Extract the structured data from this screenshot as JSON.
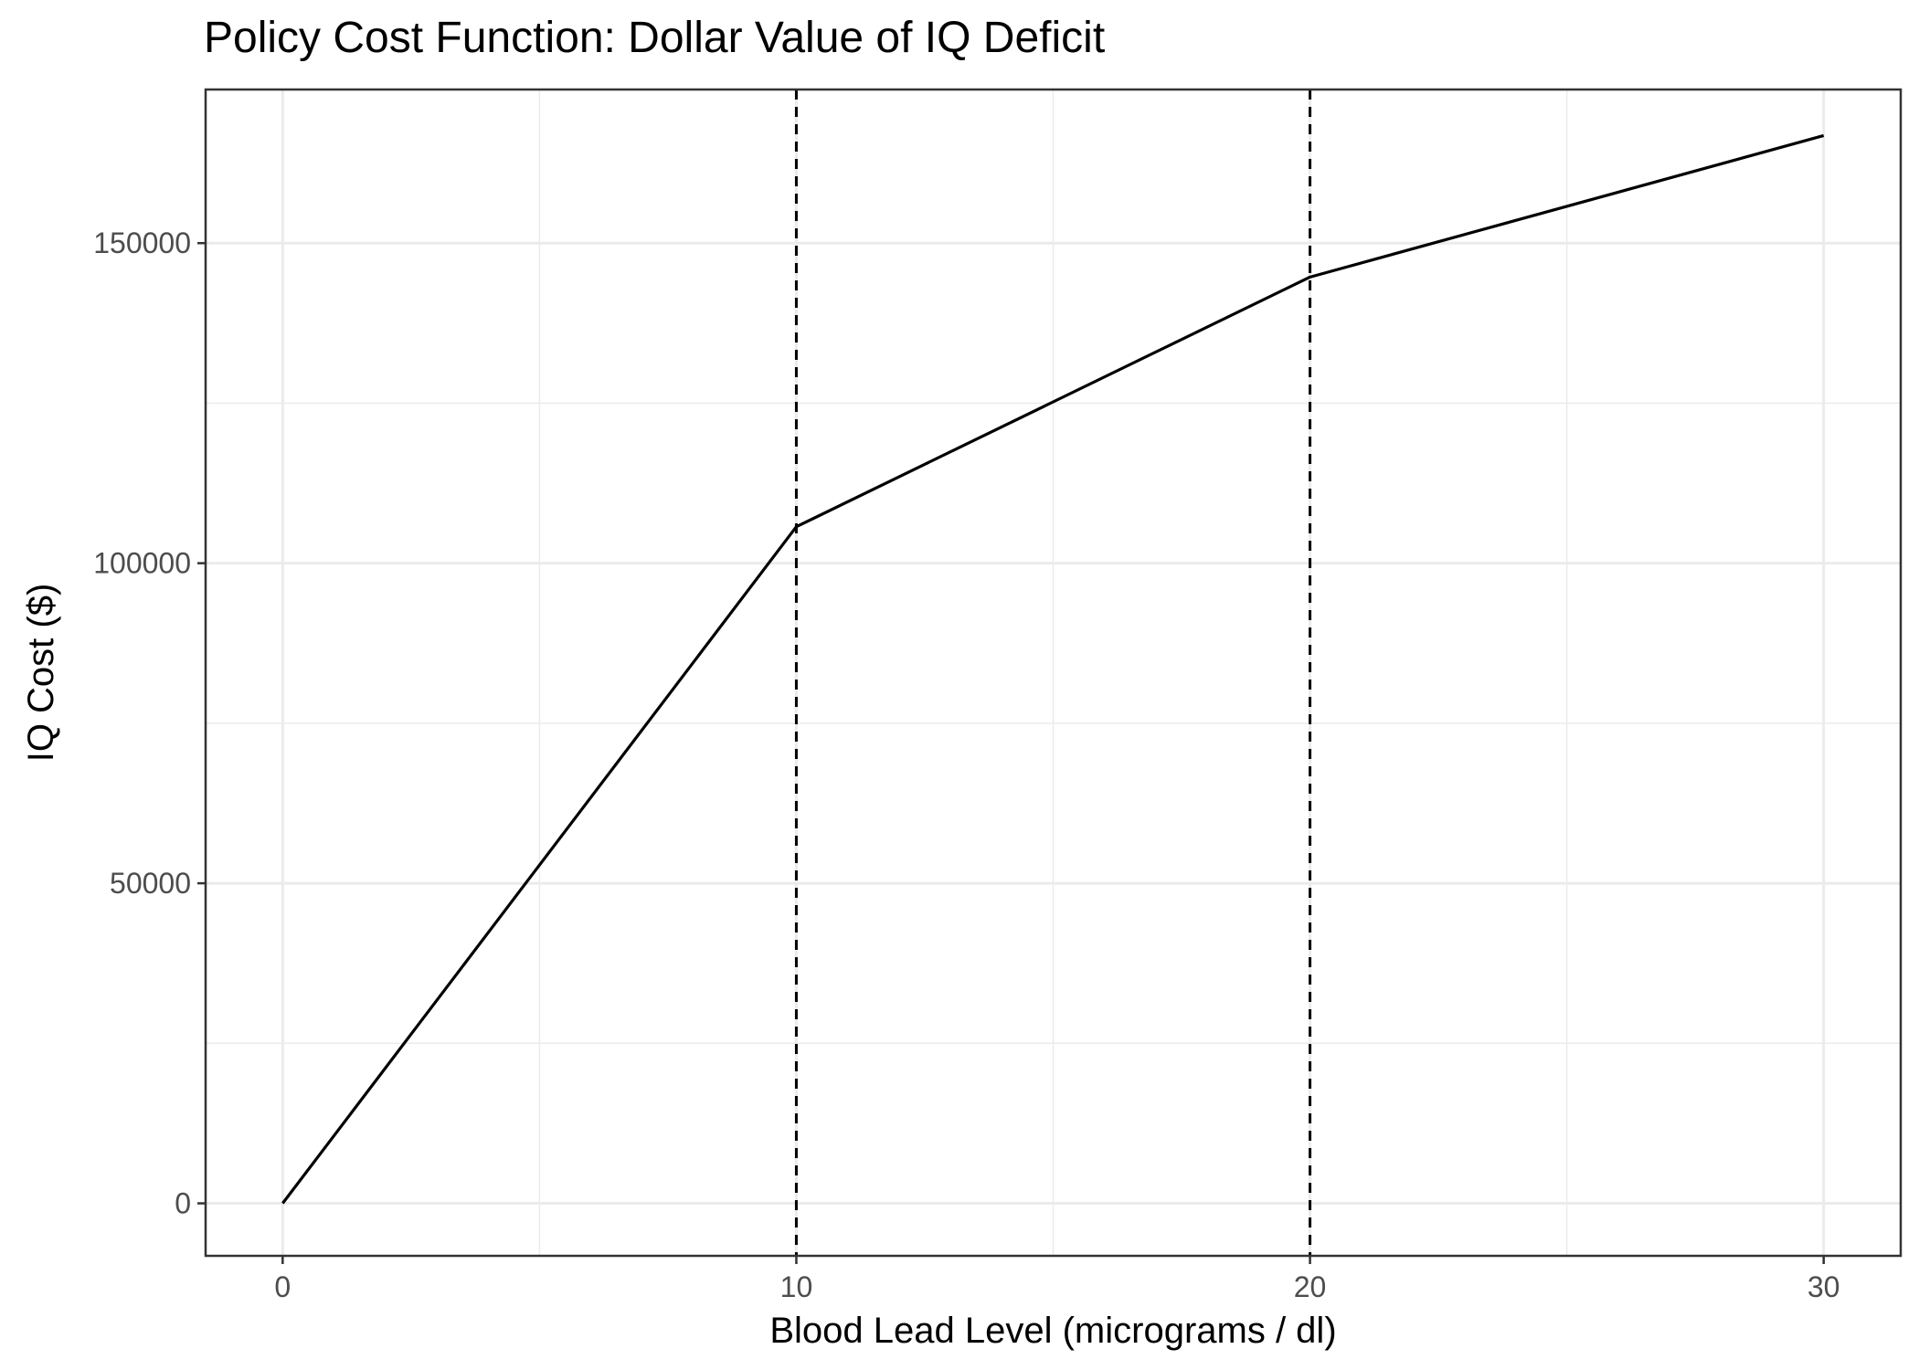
{
  "chart_data": {
    "type": "line",
    "title": "Policy Cost Function: Dollar Value of IQ Deficit",
    "xlabel": "Blood Lead Level (micrograms / dl)",
    "ylabel": "IQ Cost ($)",
    "xlim": [
      -1.5,
      31.5
    ],
    "ylim": [
      -8200,
      174000
    ],
    "x_ticks": [
      0,
      10,
      20,
      30
    ],
    "x_tick_labels": [
      "0",
      "10",
      "20",
      "30"
    ],
    "y_ticks": [
      0,
      50000,
      100000,
      150000
    ],
    "y_tick_labels": [
      "0",
      "50000",
      "100000",
      "150000"
    ],
    "x_minor": [
      5,
      15,
      25
    ],
    "y_minor": [
      25000,
      75000,
      125000
    ],
    "grid": true,
    "series": [
      {
        "x": [
          0,
          10,
          20,
          30
        ],
        "y": [
          0,
          105700,
          144700,
          166800
        ],
        "color": "#000000"
      }
    ],
    "vlines": [
      {
        "x": 10,
        "style": "dashed"
      },
      {
        "x": 20,
        "style": "dashed"
      }
    ],
    "colors": {
      "grid": "#ebebeb",
      "line": "#000000",
      "panel_border": "#333333",
      "tick_text": "#4d4d4d"
    }
  }
}
